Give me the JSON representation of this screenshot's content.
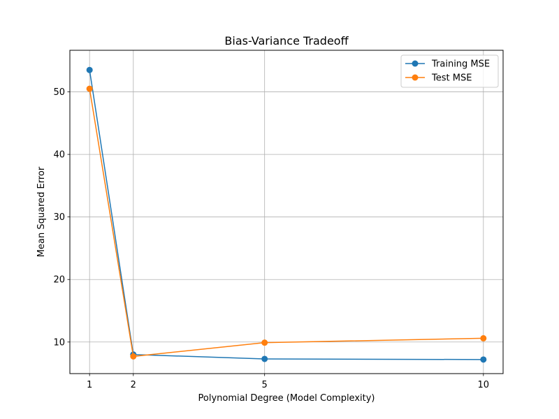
{
  "chart_data": {
    "type": "line",
    "title": "Bias-Variance Tradeoff",
    "xlabel": "Polynomial Degree (Model Complexity)",
    "ylabel": "Mean Squared Error",
    "x": [
      1,
      2,
      5,
      10
    ],
    "xticks": [
      1,
      2,
      5,
      10
    ],
    "yticks": [
      10,
      20,
      30,
      40,
      50
    ],
    "xlim": [
      0.55,
      10.45
    ],
    "ylim": [
      4.95,
      56.65
    ],
    "grid": true,
    "legend_position": "top-right",
    "series": [
      {
        "name": "Training MSE",
        "color": "#1f77b4",
        "marker": "circle",
        "values": [
          53.5,
          8.0,
          7.3,
          7.2
        ]
      },
      {
        "name": "Test MSE",
        "color": "#ff7f0e",
        "marker": "circle",
        "values": [
          50.5,
          7.7,
          9.9,
          10.6
        ]
      }
    ]
  }
}
